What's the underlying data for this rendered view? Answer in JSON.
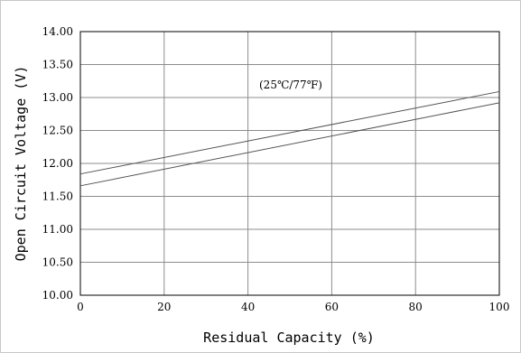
{
  "chart_data": {
    "type": "line",
    "xlabel": "Residual Capacity (%)",
    "ylabel": "Open Circuit Voltage (V)",
    "annotation": "(25℃/77℉)",
    "xlim": [
      0,
      100
    ],
    "ylim": [
      10.0,
      14.0
    ],
    "xticks": [
      0,
      20,
      40,
      60,
      80,
      100
    ],
    "xtick_labels": [
      "0",
      "20",
      "40",
      "60",
      "80",
      "100"
    ],
    "yticks": [
      10.0,
      10.5,
      11.0,
      11.5,
      12.0,
      12.5,
      13.0,
      13.5,
      14.0
    ],
    "ytick_labels": [
      "10.00",
      "10.50",
      "11.00",
      "11.50",
      "12.00",
      "12.50",
      "13.00",
      "13.50",
      "14.00"
    ],
    "grid": true,
    "series": [
      {
        "x": [
          0,
          100
        ],
        "y": [
          11.84,
          13.09
        ]
      },
      {
        "x": [
          0,
          100
        ],
        "y": [
          11.66,
          12.92
        ]
      }
    ],
    "colors": {
      "line": "#555555",
      "grid": "#8c8c8c",
      "frame": "#c8c8c8"
    }
  }
}
